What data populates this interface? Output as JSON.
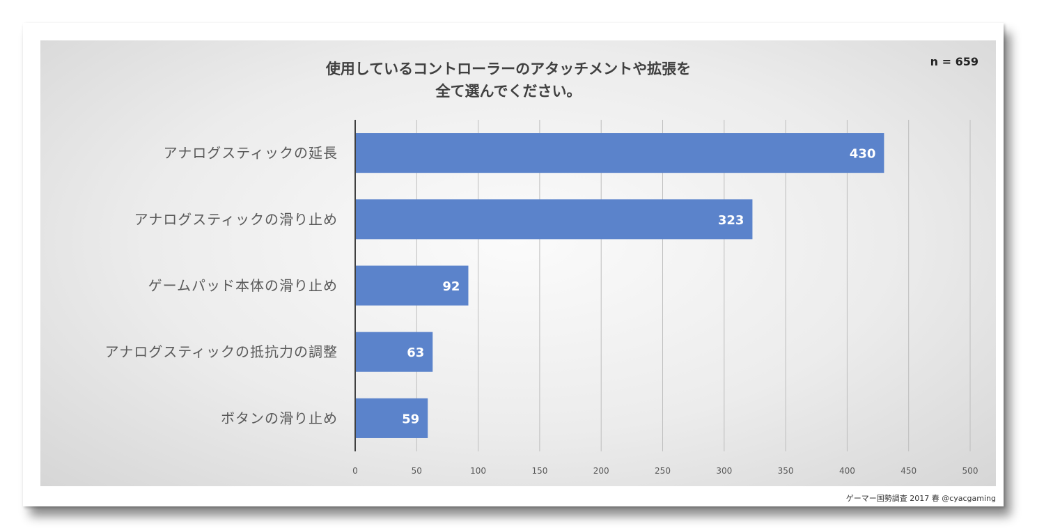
{
  "chart_data": {
    "type": "bar",
    "orientation": "horizontal",
    "title_lines": [
      "使用しているコントローラーのアタッチメントや拡張を",
      "全て選んでください。"
    ],
    "sample_size": "n = 659",
    "categories": [
      "アナログスティックの延長",
      "アナログスティックの滑り止め",
      "ゲームパッド本体の滑り止め",
      "アナログスティックの抵抗力の調整",
      "ボタンの滑り止め"
    ],
    "values": [
      430,
      323,
      92,
      63,
      59
    ],
    "data_labels": [
      "430",
      "323",
      "92",
      "63",
      "59"
    ],
    "xlim": [
      0,
      500
    ],
    "x_ticks": [
      "0",
      "50",
      "100",
      "150",
      "200",
      "250",
      "300",
      "350",
      "400",
      "450",
      "500"
    ],
    "grid": true,
    "bar_color": "#5b83cb",
    "source": "ゲーマー国勢調査 2017 春 @cyacgaming"
  }
}
